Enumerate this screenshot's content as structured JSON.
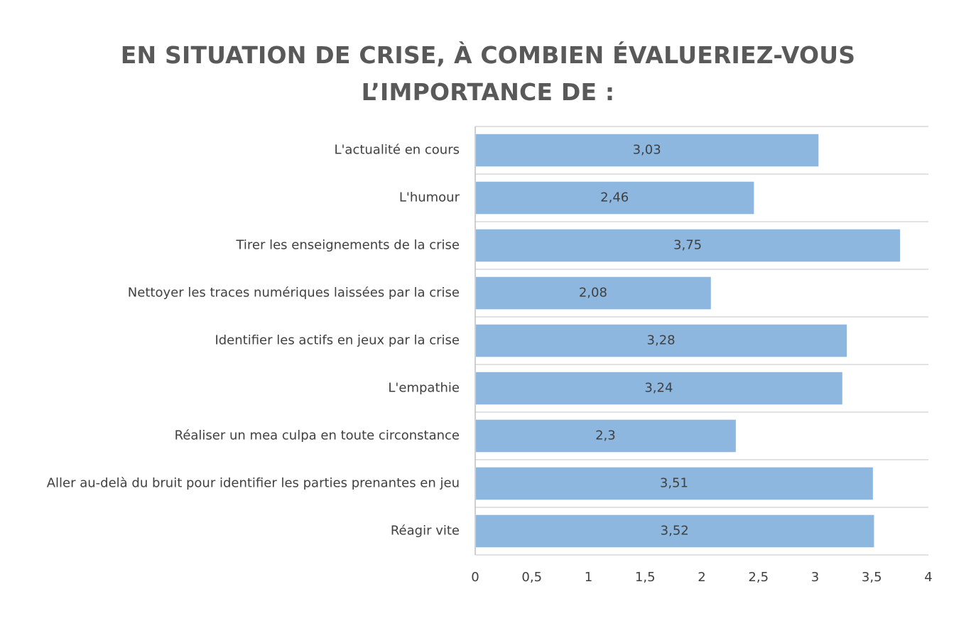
{
  "chart_data": {
    "type": "bar",
    "orientation": "horizontal",
    "title_lines": [
      "EN SITUATION DE CRISE, À COMBIEN ÉVALUERIEZ-VOUS",
      "L’IMPORTANCE DE :"
    ],
    "categories": [
      "L'actualité en cours",
      "L'humour",
      "Tirer les enseignements de la crise",
      "Nettoyer les traces numériques laissées par la crise",
      "Identifier les actifs en jeux par la crise",
      "L'empathie",
      "Réaliser un mea culpa en toute circonstance",
      "Aller au-delà du bruit pour identifier les parties prenantes en jeu",
      "Réagir vite"
    ],
    "values": [
      3.03,
      2.46,
      3.75,
      2.08,
      3.28,
      3.24,
      2.3,
      3.51,
      3.52
    ],
    "data_labels": [
      "3,03",
      "2,46",
      "3,75",
      "2,08",
      "3,28",
      "3,24",
      "2,3",
      "3,51",
      "3,52"
    ],
    "x_ticks": [
      0,
      0.5,
      1,
      1.5,
      2,
      2.5,
      3,
      3.5,
      4
    ],
    "x_tick_labels": [
      "0",
      "0,5",
      "1",
      "1,5",
      "2",
      "2,5",
      "3",
      "3,5",
      "4"
    ],
    "xlim": [
      0,
      4
    ],
    "grid": true,
    "legend": "none",
    "colors": {
      "bar": "#8db7de",
      "grid": "#e2e2e2",
      "axis": "#bfbfbf",
      "text": "#404040",
      "title": "#595959"
    }
  }
}
